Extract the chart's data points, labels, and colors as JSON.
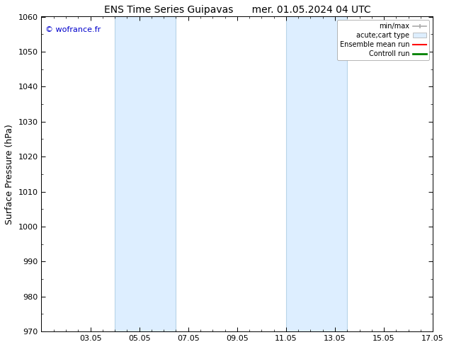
{
  "title_left": "ENS Time Series Guipavas",
  "title_right": "mer. 01.05.2024 04 UTC",
  "ylabel": "Surface Pressure (hPa)",
  "ylim": [
    970,
    1060
  ],
  "yticks": [
    970,
    980,
    990,
    1000,
    1010,
    1020,
    1030,
    1040,
    1050,
    1060
  ],
  "xlim": [
    0,
    16
  ],
  "xtick_labels": [
    "03.05",
    "05.05",
    "07.05",
    "09.05",
    "11.05",
    "13.05",
    "15.05",
    "17.05"
  ],
  "xtick_positions": [
    2,
    4,
    6,
    8,
    10,
    12,
    14,
    16
  ],
  "shaded_regions": [
    {
      "xmin": 3.0,
      "xmax": 5.5,
      "color": "#ddeeff"
    },
    {
      "xmin": 10.0,
      "xmax": 12.5,
      "color": "#ddeeff"
    }
  ],
  "shaded_region_lines": [
    {
      "x": 3.0,
      "color": "#b8d4e8"
    },
    {
      "x": 5.5,
      "color": "#b8d4e8"
    },
    {
      "x": 10.0,
      "color": "#b8d4e8"
    },
    {
      "x": 12.5,
      "color": "#b8d4e8"
    }
  ],
  "watermark_text": "© wofrance.fr",
  "watermark_color": "#0000cc",
  "background_color": "#ffffff",
  "legend_items": [
    {
      "label": "min/max",
      "color": "#aaaaaa",
      "type": "errorbar"
    },
    {
      "label": "acute;cart type",
      "color": "#ddeeff",
      "type": "patch"
    },
    {
      "label": "Ensemble mean run",
      "color": "#ff0000",
      "type": "line",
      "linewidth": 1.5
    },
    {
      "label": "Controll run",
      "color": "#008000",
      "type": "line",
      "linewidth": 2
    }
  ],
  "title_fontsize": 10,
  "tick_fontsize": 8,
  "ylabel_fontsize": 9
}
